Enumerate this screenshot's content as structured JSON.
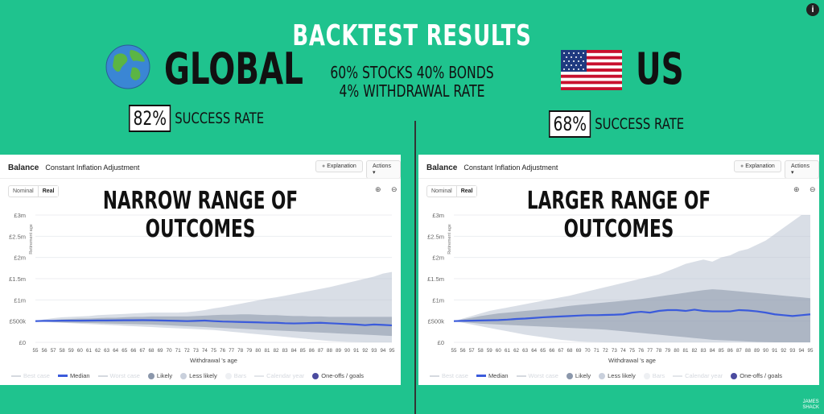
{
  "header": {
    "title": "BACKTEST RESULTS",
    "allocation": "60% STOCKS 40% BONDS",
    "withdrawal": "4% WITHDRAWAL RATE"
  },
  "global": {
    "label": "GLOBAL",
    "success_pct": "82%",
    "success_text": "SUCCESS RATE",
    "icon": "globe-icon"
  },
  "us": {
    "label": "US",
    "success_pct": "68%",
    "success_text": "SUCCESS RATE",
    "icon": "us-flag-icon"
  },
  "panel": {
    "title": "Balance",
    "subtitle": "Constant Inflation Adjustment",
    "explanation": "Explanation",
    "actions": "Actions ▾",
    "nominal": "Nominal",
    "real": "Real",
    "retirement_age": "Retirement age",
    "xlabel": "Withdrawal 's age"
  },
  "legend": {
    "best": "Best case",
    "median": "Median",
    "worst": "Worst case",
    "likely": "Likely",
    "less_likely": "Less likely",
    "bars": "Bars",
    "calendar": "Calendar year",
    "oneoffs": "One-offs / goals"
  },
  "colors": {
    "bg": "#1fc38e",
    "median": "#3b5bdb",
    "likely": "#8b97ab",
    "less_likely": "#c9d0dc",
    "oneoff": "#4b4b9f"
  },
  "brand": {
    "line1": "JAMES",
    "line2": "SHACK"
  },
  "chart_data": [
    {
      "type": "area",
      "annotation": "NARROW RANGE OF OUTCOMES",
      "x": [
        55,
        56,
        57,
        58,
        59,
        60,
        61,
        62,
        63,
        64,
        65,
        66,
        67,
        68,
        69,
        70,
        71,
        72,
        73,
        74,
        75,
        76,
        77,
        78,
        79,
        80,
        81,
        82,
        83,
        84,
        85,
        86,
        87,
        88,
        89,
        90,
        91,
        92,
        93,
        94,
        95
      ],
      "yticks": [
        "£0",
        "£500k",
        "£1m",
        "£1.5m",
        "£2m",
        "£2.5m",
        "£3m"
      ],
      "ylim": [
        0,
        3000
      ],
      "less_likely_upper": [
        500,
        540,
        570,
        590,
        600,
        610,
        620,
        640,
        650,
        660,
        670,
        680,
        690,
        700,
        700,
        700,
        700,
        710,
        730,
        760,
        800,
        830,
        870,
        910,
        950,
        990,
        1030,
        1060,
        1100,
        1140,
        1180,
        1220,
        1260,
        1300,
        1350,
        1400,
        1450,
        1500,
        1550,
        1620,
        1660
      ],
      "likely_upper": [
        500,
        520,
        530,
        540,
        550,
        560,
        560,
        570,
        580,
        580,
        590,
        600,
        600,
        610,
        610,
        610,
        610,
        610,
        620,
        630,
        640,
        650,
        650,
        660,
        660,
        650,
        640,
        640,
        630,
        620,
        620,
        610,
        610,
        600,
        600,
        600,
        600,
        600,
        600,
        600,
        600
      ],
      "likely_lower": [
        500,
        490,
        480,
        470,
        465,
        460,
        455,
        450,
        445,
        440,
        435,
        430,
        425,
        420,
        410,
        400,
        390,
        380,
        370,
        360,
        350,
        340,
        330,
        320,
        310,
        300,
        290,
        280,
        270,
        260,
        250,
        240,
        230,
        220,
        210,
        200,
        190,
        180,
        170,
        160,
        150
      ],
      "less_likely_lower": [
        500,
        480,
        470,
        460,
        450,
        440,
        430,
        420,
        410,
        400,
        390,
        380,
        370,
        360,
        350,
        340,
        330,
        320,
        310,
        300,
        290,
        270,
        250,
        230,
        210,
        190,
        170,
        150,
        130,
        110,
        90,
        70,
        50,
        30,
        20,
        10,
        5,
        0,
        0,
        0,
        0
      ],
      "median": [
        500,
        505,
        505,
        510,
        510,
        510,
        512,
        515,
        515,
        518,
        520,
        520,
        522,
        520,
        515,
        510,
        505,
        500,
        505,
        512,
        500,
        490,
        485,
        480,
        475,
        470,
        462,
        460,
        450,
        445,
        450,
        455,
        460,
        450,
        440,
        430,
        420,
        405,
        420,
        410,
        400
      ]
    },
    {
      "type": "area",
      "annotation": "LARGER RANGE OF OUTCOMES",
      "x": [
        55,
        56,
        57,
        58,
        59,
        60,
        61,
        62,
        63,
        64,
        65,
        66,
        67,
        68,
        69,
        70,
        71,
        72,
        73,
        74,
        75,
        76,
        77,
        78,
        79,
        80,
        81,
        82,
        83,
        84,
        85,
        86,
        87,
        88,
        89,
        90,
        91,
        92,
        93,
        94,
        95
      ],
      "yticks": [
        "£0",
        "£500k",
        "£1m",
        "£1.5m",
        "£2m",
        "£2.5m",
        "£3m"
      ],
      "ylim": [
        0,
        3000
      ],
      "less_likely_upper": [
        500,
        560,
        620,
        680,
        740,
        780,
        820,
        860,
        900,
        940,
        980,
        1020,
        1060,
        1100,
        1150,
        1200,
        1250,
        1300,
        1350,
        1400,
        1450,
        1500,
        1550,
        1600,
        1680,
        1760,
        1850,
        1900,
        1950,
        1900,
        2000,
        2050,
        2150,
        2200,
        2300,
        2400,
        2550,
        2700,
        2850,
        3000,
        3000
      ],
      "likely_upper": [
        500,
        540,
        580,
        620,
        650,
        680,
        700,
        720,
        740,
        760,
        780,
        800,
        830,
        860,
        880,
        900,
        920,
        940,
        960,
        980,
        1000,
        1020,
        1050,
        1080,
        1110,
        1140,
        1170,
        1200,
        1230,
        1250,
        1240,
        1220,
        1200,
        1180,
        1160,
        1140,
        1120,
        1100,
        1080,
        1060,
        1040
      ],
      "likely_lower": [
        500,
        480,
        460,
        440,
        430,
        420,
        410,
        400,
        390,
        380,
        370,
        360,
        350,
        340,
        330,
        320,
        310,
        300,
        280,
        260,
        240,
        220,
        200,
        180,
        160,
        140,
        120,
        100,
        80,
        60,
        50,
        40,
        30,
        20,
        10,
        5,
        0,
        0,
        0,
        0,
        0
      ],
      "less_likely_lower": [
        500,
        460,
        420,
        380,
        340,
        300,
        260,
        220,
        180,
        150,
        120,
        90,
        60,
        40,
        20,
        10,
        5,
        0,
        0,
        0,
        0,
        0,
        0,
        0,
        0,
        0,
        0,
        0,
        0,
        0,
        0,
        0,
        0,
        0,
        0,
        0,
        0,
        0,
        0,
        0,
        0
      ],
      "median": [
        500,
        505,
        510,
        515,
        520,
        525,
        535,
        550,
        560,
        575,
        590,
        600,
        610,
        620,
        630,
        640,
        640,
        645,
        650,
        660,
        700,
        720,
        700,
        740,
        760,
        760,
        740,
        770,
        740,
        730,
        730,
        730,
        760,
        750,
        730,
        700,
        660,
        640,
        620,
        640,
        660
      ]
    }
  ]
}
